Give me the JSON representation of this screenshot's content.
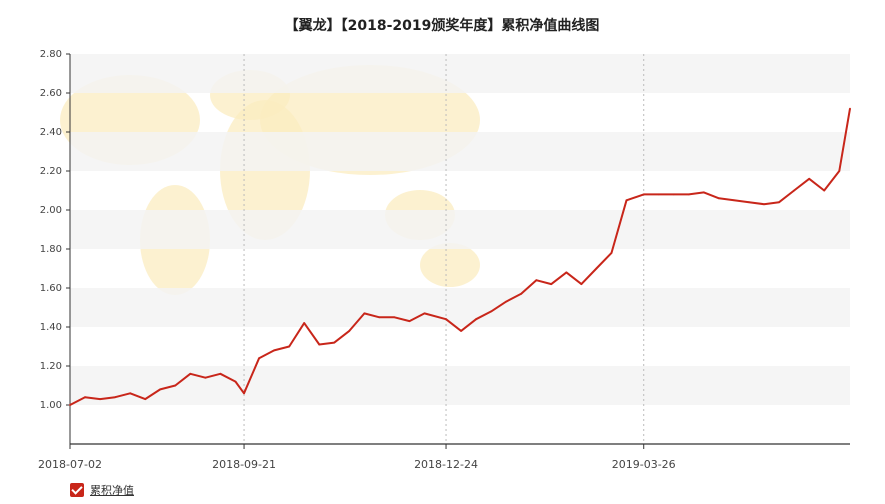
{
  "chart_data": {
    "type": "line",
    "title": "【翼龙】【2018-2019颁奖年度】累积净值曲线图",
    "xlabel": "",
    "ylabel": "",
    "ylim": [
      0.8,
      2.8
    ],
    "y_ticks": [
      "1.00",
      "1.20",
      "1.40",
      "1.60",
      "1.80",
      "2.00",
      "2.20",
      "2.40",
      "2.60",
      "2.80"
    ],
    "x_ticks": [
      "2018-07-02",
      "2018-09-21",
      "2018-12-24",
      "2019-03-26"
    ],
    "grid": true,
    "legend_position": "bottom-left",
    "colors": {
      "line": "#c8261a",
      "band": "#f3f3f3",
      "axis": "#333333",
      "map": "#fbecc0"
    },
    "series": [
      {
        "name": "累积净值",
        "x": [
          "2018-07-02",
          "2018-07-09",
          "2018-07-16",
          "2018-07-23",
          "2018-07-30",
          "2018-08-06",
          "2018-08-13",
          "2018-08-20",
          "2018-08-27",
          "2018-09-03",
          "2018-09-10",
          "2018-09-17",
          "2018-09-21",
          "2018-09-28",
          "2018-10-05",
          "2018-10-12",
          "2018-10-19",
          "2018-10-26",
          "2018-11-02",
          "2018-11-09",
          "2018-11-16",
          "2018-11-23",
          "2018-11-30",
          "2018-12-07",
          "2018-12-14",
          "2018-12-24",
          "2018-12-31",
          "2019-01-07",
          "2019-01-14",
          "2019-01-21",
          "2019-01-28",
          "2019-02-04",
          "2019-02-11",
          "2019-02-18",
          "2019-02-25",
          "2019-03-04",
          "2019-03-11",
          "2019-03-18",
          "2019-03-26",
          "2019-04-02",
          "2019-04-09",
          "2019-04-16",
          "2019-04-23",
          "2019-04-30",
          "2019-05-07",
          "2019-05-14",
          "2019-05-21",
          "2019-05-28",
          "2019-06-04",
          "2019-06-11",
          "2019-06-18",
          "2019-06-25",
          "2019-06-30"
        ],
        "values": [
          1.0,
          1.04,
          1.03,
          1.04,
          1.06,
          1.03,
          1.08,
          1.1,
          1.16,
          1.14,
          1.16,
          1.12,
          1.06,
          1.24,
          1.28,
          1.3,
          1.42,
          1.31,
          1.32,
          1.38,
          1.47,
          1.45,
          1.45,
          1.43,
          1.47,
          1.44,
          1.38,
          1.44,
          1.48,
          1.53,
          1.57,
          1.64,
          1.62,
          1.68,
          1.62,
          1.7,
          1.78,
          2.05,
          2.08,
          2.08,
          2.08,
          2.08,
          2.09,
          2.06,
          2.05,
          2.04,
          2.03,
          2.04,
          2.1,
          2.16,
          2.1,
          2.2,
          2.52
        ]
      }
    ]
  },
  "legend": {
    "label": "累积净值"
  }
}
